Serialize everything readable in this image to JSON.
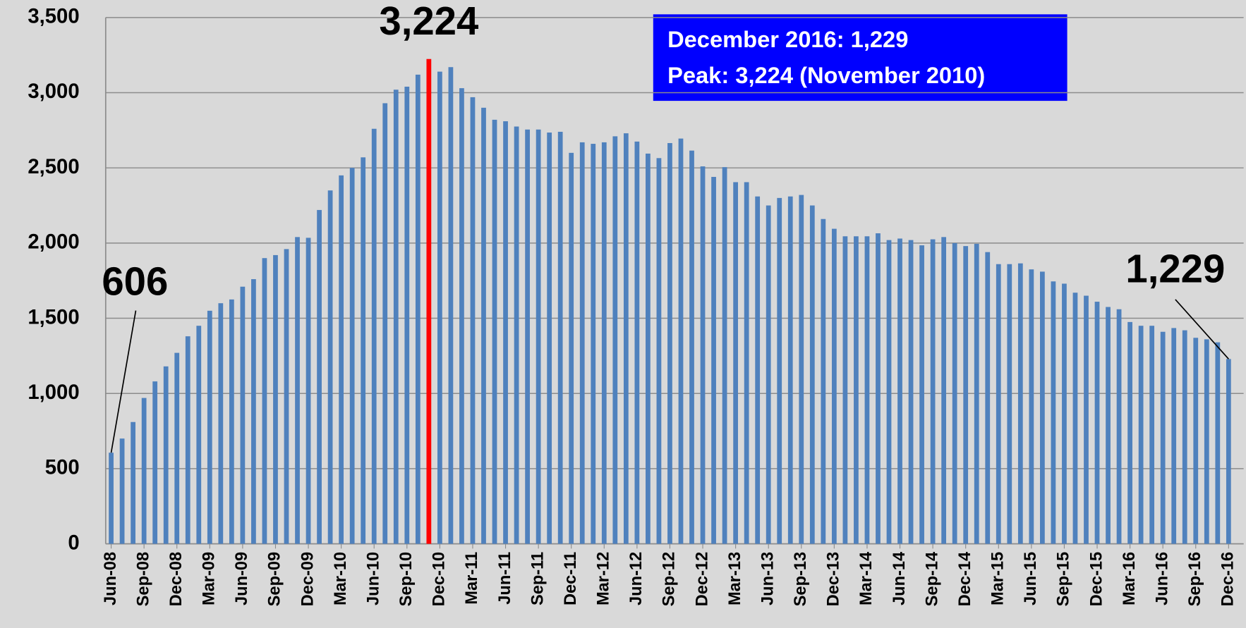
{
  "chart_data": {
    "type": "bar",
    "categories": [
      "Jun-08",
      null,
      null,
      "Sep-08",
      null,
      null,
      "Dec-08",
      null,
      null,
      "Mar-09",
      null,
      null,
      "Jun-09",
      null,
      null,
      "Sep-09",
      null,
      null,
      "Dec-09",
      null,
      null,
      "Mar-10",
      null,
      null,
      "Jun-10",
      null,
      null,
      "Sep-10",
      null,
      null,
      "Dec-10",
      null,
      null,
      "Mar-11",
      null,
      null,
      "Jun-11",
      null,
      null,
      "Sep-11",
      null,
      null,
      "Dec-11",
      null,
      null,
      "Mar-12",
      null,
      null,
      "Jun-12",
      null,
      null,
      "Sep-12",
      null,
      null,
      "Dec-12",
      null,
      null,
      "Mar-13",
      null,
      null,
      "Jun-13",
      null,
      null,
      "Sep-13",
      null,
      null,
      "Dec-13",
      null,
      null,
      "Mar-14",
      null,
      null,
      "Jun-14",
      null,
      null,
      "Sep-14",
      null,
      null,
      "Dec-14",
      null,
      null,
      "Mar-15",
      null,
      null,
      "Jun-15",
      null,
      null,
      "Sep-15",
      null,
      null,
      "Dec-15",
      null,
      null,
      "Mar-16",
      null,
      null,
      "Jun-16",
      null,
      null,
      "Sep-16",
      null,
      null,
      "Dec-16"
    ],
    "values": [
      606,
      700,
      810,
      970,
      1080,
      1180,
      1270,
      1380,
      1450,
      1550,
      1600,
      1625,
      1710,
      1760,
      1900,
      1920,
      1960,
      2040,
      2035,
      2220,
      2350,
      2450,
      2500,
      2570,
      2760,
      2930,
      3020,
      3040,
      3120,
      3224,
      3140,
      3170,
      3030,
      2970,
      2900,
      2820,
      2810,
      2775,
      2755,
      2755,
      2735,
      2740,
      2600,
      2670,
      2660,
      2670,
      2710,
      2730,
      2675,
      2595,
      2565,
      2665,
      2695,
      2615,
      2510,
      2440,
      2505,
      2405,
      2405,
      2310,
      2250,
      2300,
      2310,
      2320,
      2250,
      2160,
      2095,
      2045,
      2045,
      2045,
      2065,
      2020,
      2030,
      2020,
      1985,
      2025,
      2040,
      2000,
      1980,
      1995,
      1940,
      1860,
      1860,
      1865,
      1825,
      1810,
      1745,
      1730,
      1670,
      1650,
      1610,
      1575,
      1560,
      1475,
      1450,
      1450,
      1410,
      1435,
      1420,
      1370,
      1360,
      1340,
      1229
    ],
    "value_labels": [
      "606",
      null,
      null,
      null,
      null,
      null,
      null,
      null,
      null,
      null,
      null,
      null,
      null,
      null,
      null,
      null,
      null,
      null,
      null,
      null,
      null,
      null,
      null,
      null,
      null,
      null,
      null,
      null,
      null,
      "3,224",
      null,
      null,
      null,
      null,
      null,
      null,
      null,
      null,
      null,
      null,
      null,
      null,
      null,
      null,
      null,
      null,
      null,
      null,
      null,
      null,
      null,
      null,
      null,
      null,
      null,
      null,
      null,
      null,
      null,
      null,
      null,
      null,
      null,
      null,
      null,
      null,
      null,
      null,
      null,
      null,
      null,
      null,
      null,
      null,
      null,
      null,
      null,
      null,
      null,
      null,
      null,
      null,
      null,
      null,
      null,
      null,
      null,
      null,
      null,
      null,
      null,
      null,
      null,
      null,
      null,
      null,
      null,
      null,
      null,
      null,
      null,
      null,
      "1,229"
    ],
    "color": "#4f81bd",
    "peak_color": "#ff0000",
    "annotations": [
      "December 2016: 1,229",
      "Peak: 3,224 (November 2010)"
    ],
    "ylim": [
      0,
      3500
    ],
    "yticks": [
      0,
      {
        "value": 500,
        "label": "500"
      },
      {
        "value": 1000,
        "label": "1,000"
      },
      {
        "value": 1500,
        "label": "1,500"
      },
      {
        "value": 2000,
        "label": "2,000"
      },
      {
        "value": 2500,
        "label": "2,500"
      },
      {
        "value": 3000,
        "label": "3,000"
      },
      {
        "value": 3500,
        "label": "3,500"
      }
    ],
    "grid": true
  }
}
